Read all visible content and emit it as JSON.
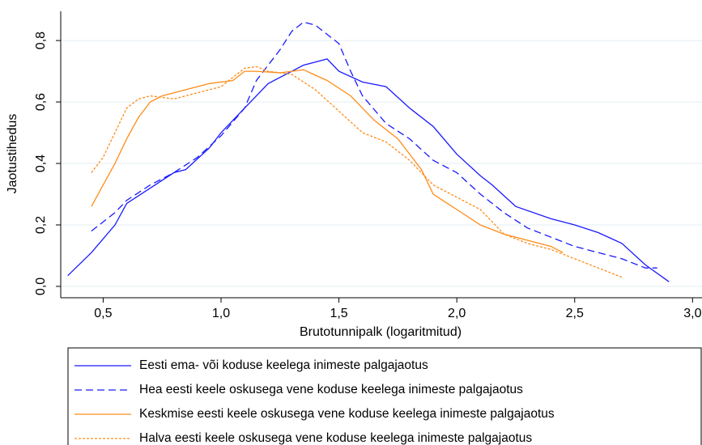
{
  "chart_data": {
    "type": "line",
    "xlabel": "Brutotunnipalk (logaritmitud)",
    "ylabel": "Jaotustihedus",
    "xlim": [
      0.32,
      3.04
    ],
    "ylim": [
      -0.037,
      0.895
    ],
    "xticks": [
      {
        "value": 0.5,
        "label": "0,5"
      },
      {
        "value": 1.0,
        "label": "1,0"
      },
      {
        "value": 1.5,
        "label": "1,5"
      },
      {
        "value": 2.0,
        "label": "2,0"
      },
      {
        "value": 2.5,
        "label": "2,5"
      },
      {
        "value": 3.0,
        "label": "3,0"
      }
    ],
    "yticks": [
      {
        "value": 0,
        "label": "0,0"
      },
      {
        "value": 0.2,
        "label": "0,2"
      },
      {
        "value": 0.4,
        "label": "0,4"
      },
      {
        "value": 0.6,
        "label": "0,6"
      },
      {
        "value": 0.8,
        "label": "0,8"
      }
    ],
    "grid": true,
    "legend": "bottom",
    "series": [
      {
        "name": "Eesti ema- või koduse keelega inimeste palgajaotus",
        "color": "#1a1aff",
        "line_style": "solid",
        "x": [
          0.35,
          0.45,
          0.55,
          0.6,
          0.7,
          0.8,
          0.85,
          0.95,
          1.0,
          1.05,
          1.1,
          1.2,
          1.3,
          1.35,
          1.45,
          1.5,
          1.6,
          1.7,
          1.8,
          1.9,
          2.0,
          2.1,
          2.15,
          2.25,
          2.4,
          2.5,
          2.6,
          2.7,
          2.8,
          2.9
        ],
        "values": [
          0.035,
          0.11,
          0.2,
          0.27,
          0.32,
          0.37,
          0.38,
          0.45,
          0.5,
          0.54,
          0.58,
          0.66,
          0.7,
          0.72,
          0.74,
          0.7,
          0.665,
          0.65,
          0.58,
          0.52,
          0.43,
          0.36,
          0.33,
          0.26,
          0.22,
          0.2,
          0.175,
          0.14,
          0.07,
          0.015
        ]
      },
      {
        "name": "Hea eesti keele oskusega vene koduse keelega inimeste palgajaotus",
        "color": "#1a1aff",
        "line_style": "dashed",
        "x": [
          0.45,
          0.55,
          0.6,
          0.7,
          0.8,
          0.9,
          1.0,
          1.1,
          1.15,
          1.2,
          1.25,
          1.3,
          1.35,
          1.4,
          1.5,
          1.55,
          1.6,
          1.7,
          1.8,
          1.9,
          2.0,
          2.1,
          2.2,
          2.3,
          2.4,
          2.5,
          2.6,
          2.7,
          2.8,
          2.85
        ],
        "values": [
          0.18,
          0.24,
          0.28,
          0.33,
          0.37,
          0.42,
          0.49,
          0.58,
          0.67,
          0.72,
          0.77,
          0.83,
          0.86,
          0.85,
          0.79,
          0.7,
          0.62,
          0.53,
          0.48,
          0.41,
          0.37,
          0.3,
          0.24,
          0.19,
          0.16,
          0.13,
          0.11,
          0.09,
          0.06,
          0.06
        ]
      },
      {
        "name": "Keskmise eesti keele oskusega vene koduse keelega inimeste palgajaotus",
        "color": "#ff8c1a",
        "line_style": "solid",
        "x": [
          0.45,
          0.5,
          0.55,
          0.6,
          0.65,
          0.7,
          0.75,
          0.85,
          0.95,
          1.05,
          1.1,
          1.15,
          1.25,
          1.3,
          1.35,
          1.45,
          1.55,
          1.65,
          1.75,
          1.85,
          1.9,
          2.0,
          2.1,
          2.2,
          2.3,
          2.4,
          2.45
        ],
        "values": [
          0.26,
          0.33,
          0.4,
          0.48,
          0.55,
          0.6,
          0.62,
          0.64,
          0.66,
          0.67,
          0.7,
          0.7,
          0.695,
          0.7,
          0.705,
          0.67,
          0.62,
          0.54,
          0.48,
          0.38,
          0.3,
          0.25,
          0.2,
          0.17,
          0.15,
          0.13,
          0.11
        ]
      },
      {
        "name": "Halva eesti keele oskusega vene koduse keelega inimeste palgajaotus",
        "color": "#ff8c1a",
        "line_style": "dotted",
        "x": [
          0.45,
          0.5,
          0.55,
          0.6,
          0.65,
          0.7,
          0.8,
          0.9,
          1.0,
          1.1,
          1.15,
          1.2,
          1.3,
          1.4,
          1.5,
          1.6,
          1.7,
          1.8,
          1.9,
          2.0,
          2.1,
          2.2,
          2.3,
          2.4,
          2.5,
          2.6,
          2.7
        ],
        "values": [
          0.37,
          0.42,
          0.5,
          0.58,
          0.61,
          0.62,
          0.61,
          0.63,
          0.65,
          0.71,
          0.715,
          0.7,
          0.69,
          0.64,
          0.57,
          0.5,
          0.47,
          0.41,
          0.33,
          0.29,
          0.25,
          0.17,
          0.14,
          0.12,
          0.09,
          0.06,
          0.03
        ]
      }
    ]
  }
}
